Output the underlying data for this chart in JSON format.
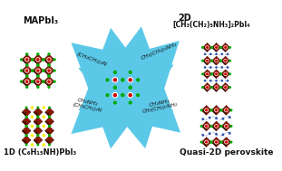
{
  "bg_color": "#ffffff",
  "arrow_color": "#5bc8e8",
  "crystal_colors": {
    "oct_main": "#8B1A00",
    "oct_light": "#b02010",
    "oct_dark": "#4a0e00",
    "oct_edge": "#2a0800",
    "corner_green": "#00aa00",
    "center_white": "#ffffff",
    "center_red": "#cc0000",
    "yellow_dot": "#ffee00",
    "blue_dot": "#3355aa",
    "dashed_blue": "#5577cc"
  },
  "labels": {
    "top_left": "MAPbI₃",
    "top_right_l1": "2D",
    "top_right_l2": "[CH₃(CH₂)₅NH₃]₂PbI₄",
    "bot_left": "1D (C₆H₁₅NH)PbI₃",
    "bot_right": "Quasi-2D perovskite"
  },
  "arrow_labels": {
    "tl": "(CH₂CH₂)₂N",
    "tr": "CH₃(CH₂)₅NH₃",
    "bl_1": "CH₃NH₂",
    "bl_2": "(CH₂CH₂)₂N",
    "br_1": "CH₃NH₂",
    "br_2": "CH₃(CH₂)₅NH₃"
  }
}
